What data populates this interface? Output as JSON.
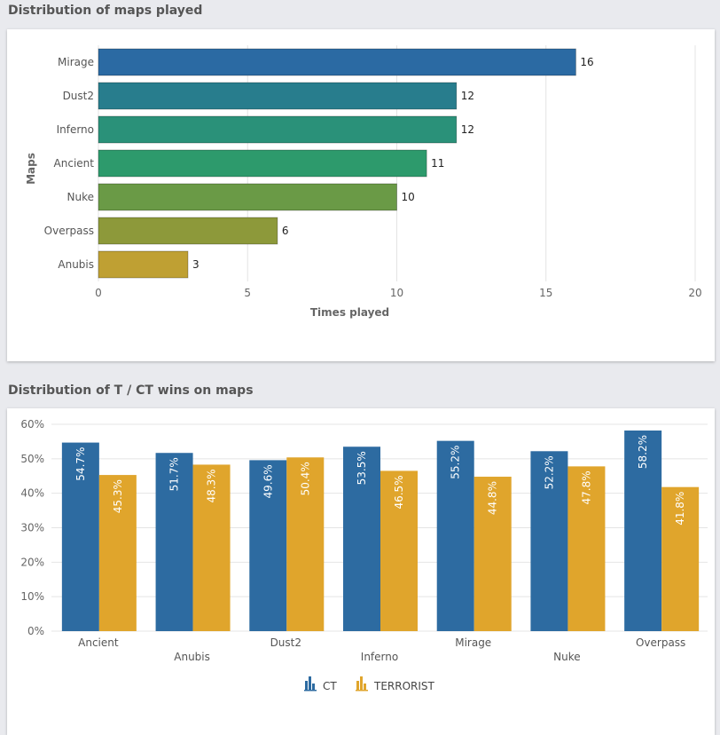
{
  "sections": [
    {
      "title": "Distribution of maps played"
    },
    {
      "title": "Distribution of T / CT wins on maps"
    }
  ],
  "chart_data": [
    {
      "type": "bar",
      "orientation": "horizontal",
      "categories": [
        "Mirage",
        "Dust2",
        "Inferno",
        "Ancient",
        "Nuke",
        "Overpass",
        "Anubis"
      ],
      "values": [
        16,
        12,
        12,
        11,
        10,
        6,
        3
      ],
      "value_labels": [
        "16",
        "12",
        "12",
        "11",
        "10",
        "6",
        "3"
      ],
      "colors": [
        "#2b6aa3",
        "#287d8d",
        "#2a9179",
        "#2d9a6c",
        "#6a9a46",
        "#8d993a",
        "#bfa033"
      ],
      "xlabel": "Times played",
      "ylabel": "Maps",
      "xlim": [
        0,
        20
      ],
      "xticks": [
        "0",
        "5",
        "10",
        "15",
        "20"
      ],
      "grid": true,
      "legend": "none"
    },
    {
      "type": "bar",
      "orientation": "vertical",
      "categories": [
        "Ancient",
        "Anubis",
        "Dust2",
        "Inferno",
        "Mirage",
        "Nuke",
        "Overpass"
      ],
      "series": [
        {
          "name": "CT",
          "color": "#2d6ba1",
          "values": [
            54.7,
            51.7,
            49.6,
            53.5,
            55.2,
            52.2,
            58.2
          ],
          "value_labels": [
            "54.7%",
            "51.7%",
            "49.6%",
            "53.5%",
            "55.2%",
            "52.2%",
            "58.2%"
          ]
        },
        {
          "name": "TERRORIST",
          "color": "#e0a52c",
          "values": [
            45.3,
            48.3,
            50.4,
            46.5,
            44.8,
            47.8,
            41.8
          ],
          "value_labels": [
            "45.3%",
            "48.3%",
            "50.4%",
            "46.5%",
            "44.8%",
            "47.8%",
            "41.8%"
          ]
        }
      ],
      "ylim": [
        0,
        60
      ],
      "yticks": [
        "0%",
        "10%",
        "20%",
        "30%",
        "40%",
        "50%",
        "60%"
      ],
      "grid": true,
      "legend": "bottom-center",
      "legend_icon": "bar-chart-icon"
    }
  ]
}
